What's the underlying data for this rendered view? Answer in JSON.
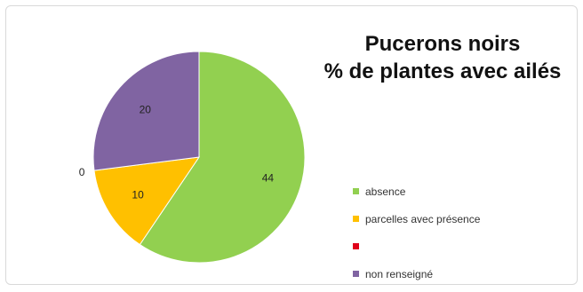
{
  "chart_data": {
    "type": "pie",
    "title_lines": [
      "Pucerons noirs",
      "% de plantes avec ailés"
    ],
    "slices": [
      {
        "name": "absence",
        "value": 44,
        "label": "44",
        "color": "#92d050"
      },
      {
        "name": "parcelles avec présence",
        "value": 10,
        "label": "10",
        "color": "#ffc000"
      },
      {
        "name": "",
        "value": 0,
        "label": "0",
        "color": "#e0001a"
      },
      {
        "name": "non renseigné",
        "value": 20,
        "label": "20",
        "color": "#8064a2"
      }
    ],
    "start": "top, clockwise",
    "legend_position": "right"
  }
}
